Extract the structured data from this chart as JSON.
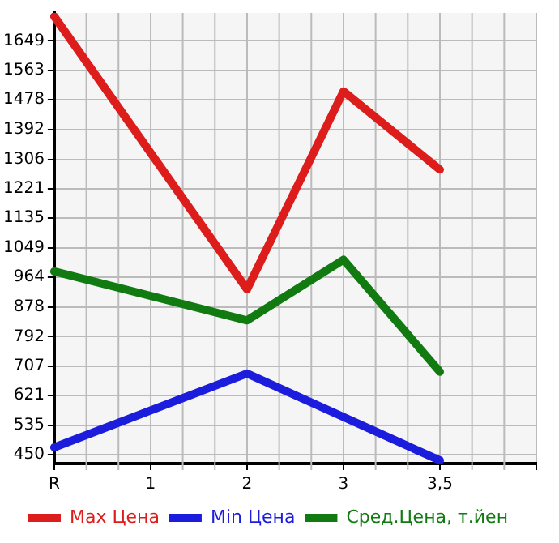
{
  "chart_data": {
    "type": "line",
    "categories": [
      "R",
      "1",
      "2",
      "3",
      "3,5",
      null
    ],
    "ylim": [
      424,
      1730
    ],
    "yticks": [
      450,
      535,
      621,
      707,
      792,
      878,
      964,
      1049,
      1135,
      1221,
      1306,
      1392,
      1478,
      1563,
      1649
    ],
    "series": [
      {
        "name": "Max Цена",
        "color": "#dd1c1c",
        "values": [
          1720,
          null,
          929,
          1503,
          1276,
          null
        ]
      },
      {
        "name": "Min Цена",
        "color": "#1c1cdd",
        "values": [
          471,
          null,
          685,
          null,
          433,
          null
        ]
      },
      {
        "name": "Сред.Цена, т.йен",
        "color": "#117a11",
        "values": [
          981,
          null,
          839,
          1015,
          690,
          null
        ]
      }
    ],
    "grid": true,
    "legend": "bottom",
    "marker": "none",
    "line_style": "solid"
  }
}
